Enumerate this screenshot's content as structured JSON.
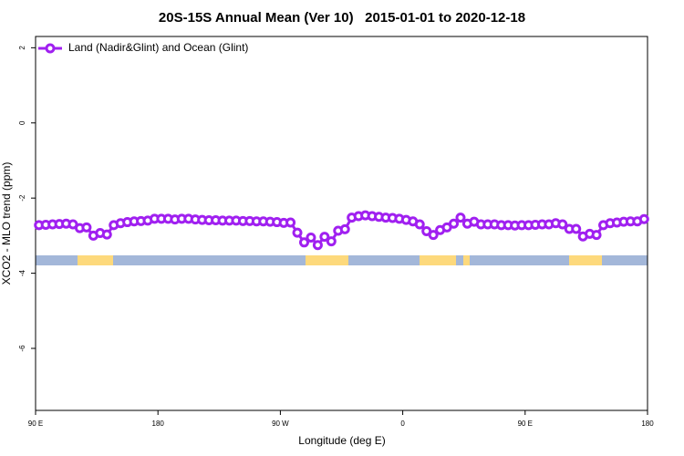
{
  "chart_data": {
    "type": "line",
    "title": "20S-15S Annual Mean (Ver 10)   2015-01-01 to 2020-12-18",
    "xlabel": "Longitude (deg E)",
    "ylabel": "XCO2 - MLO trend (ppm)",
    "xlim": [
      90,
      540
    ],
    "ylim": [
      -7.65,
      2.3
    ],
    "xticks": [
      {
        "value": 90,
        "label": "90 E"
      },
      180,
      {
        "value": 270,
        "label": "90 W"
      },
      {
        "value": 360,
        "label": "0"
      },
      {
        "value": 450,
        "label": "90 E"
      },
      {
        "value": 540,
        "label": "180"
      }
    ],
    "yticks": [
      2,
      0,
      -2,
      -4,
      -6
    ],
    "legend": "top-left",
    "x": [
      92.5,
      97.5,
      102.5,
      107.5,
      112.5,
      117.5,
      122.5,
      127.5,
      132.5,
      137.5,
      142.5,
      147.5,
      152.5,
      157.5,
      162.5,
      167.5,
      172.5,
      177.5,
      182.5,
      187.5,
      192.5,
      197.5,
      202.5,
      207.5,
      212.5,
      217.5,
      222.5,
      227.5,
      232.5,
      237.5,
      242.5,
      247.5,
      252.5,
      257.5,
      262.5,
      267.5,
      272.5,
      277.5,
      282.5,
      287.5,
      292.5,
      297.5,
      302.5,
      307.5,
      312.5,
      317.5,
      322.5,
      327.5,
      332.5,
      337.5,
      342.5,
      347.5,
      352.5,
      357.5,
      362.5,
      367.5,
      372.5,
      377.5,
      382.5,
      387.5,
      392.5,
      397.5,
      402.5,
      407.5,
      412.5,
      417.5,
      422.5,
      427.5,
      432.5,
      437.5,
      442.5,
      447.5,
      452.5,
      457.5,
      462.5,
      467.5,
      472.5,
      477.5,
      482.5,
      487.5,
      492.5,
      497.5,
      502.5,
      507.5,
      512.5,
      517.5,
      522.5,
      527.5,
      532.5,
      537.5
    ],
    "series": [
      {
        "name": "Land (Nadir&Glint) and Ocean (Glint)",
        "color": "#a020f0",
        "values": [
          -2.72,
          -2.71,
          -2.7,
          -2.69,
          -2.68,
          -2.7,
          -2.8,
          -2.78,
          -3.0,
          -2.93,
          -2.97,
          -2.72,
          -2.67,
          -2.64,
          -2.62,
          -2.61,
          -2.6,
          -2.55,
          -2.55,
          -2.55,
          -2.57,
          -2.55,
          -2.55,
          -2.57,
          -2.58,
          -2.59,
          -2.59,
          -2.6,
          -2.6,
          -2.6,
          -2.61,
          -2.61,
          -2.62,
          -2.62,
          -2.63,
          -2.64,
          -2.66,
          -2.65,
          -2.92,
          -3.18,
          -3.05,
          -3.25,
          -3.03,
          -3.15,
          -2.87,
          -2.83,
          -2.52,
          -2.48,
          -2.46,
          -2.48,
          -2.5,
          -2.52,
          -2.53,
          -2.55,
          -2.58,
          -2.62,
          -2.7,
          -2.88,
          -2.98,
          -2.85,
          -2.78,
          -2.68,
          -2.52,
          -2.68,
          -2.63,
          -2.7,
          -2.7,
          -2.7,
          -2.72,
          -2.72,
          -2.73,
          -2.72,
          -2.72,
          -2.71,
          -2.7,
          -2.7,
          -2.67,
          -2.7,
          -2.82,
          -2.82,
          -3.02,
          -2.95,
          -2.98,
          -2.72,
          -2.67,
          -2.65,
          -2.63,
          -2.62,
          -2.62,
          -2.56
        ]
      }
    ]
  }
}
